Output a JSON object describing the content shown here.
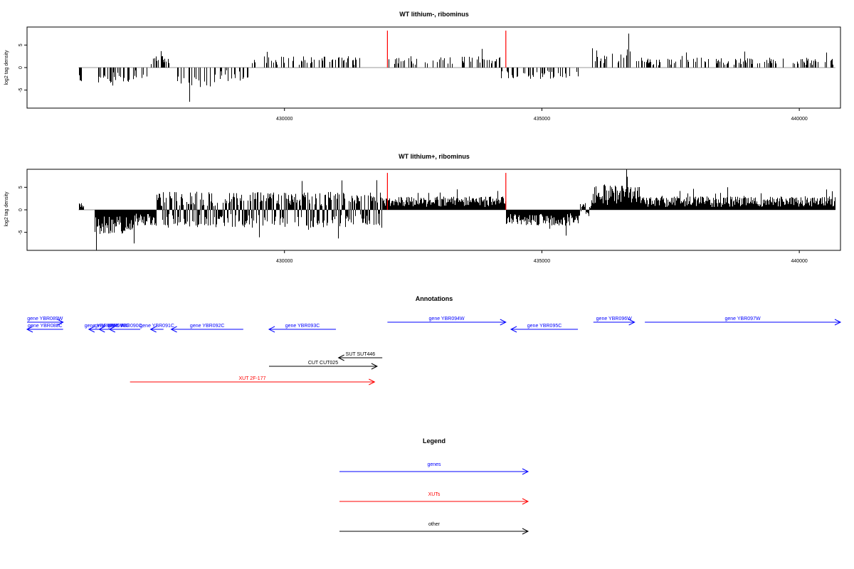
{
  "chart_data": [
    {
      "type": "bar",
      "title": "WT lithium-, ribominus",
      "xlabel": "",
      "ylabel": "log2 tag density",
      "xlim": [
        425000,
        440800
      ],
      "ylim": [
        -9,
        9
      ],
      "xticks": [
        430000,
        435000,
        440000
      ],
      "xtick_labels": [
        "430000",
        "435000",
        "440000"
      ],
      "yticks": [
        -5,
        0,
        5
      ],
      "ytick_labels": [
        "-5",
        "0",
        "5"
      ],
      "density_range": [
        426000,
        440700
      ],
      "segments": [
        {
          "x0": 426000,
          "x1": 426100,
          "sign": -1,
          "amp": 3.5
        },
        {
          "x0": 426100,
          "x1": 426300,
          "sign": 0,
          "amp": 0
        },
        {
          "x0": 426300,
          "x1": 427000,
          "sign": -1,
          "amp": 4.0
        },
        {
          "x0": 427000,
          "x1": 427400,
          "sign": -1,
          "amp": 3.0
        },
        {
          "x0": 427400,
          "x1": 427800,
          "sign": 1,
          "amp": 2.5
        },
        {
          "x0": 427800,
          "x1": 428700,
          "sign": -1,
          "amp": 4.5
        },
        {
          "x0": 428700,
          "x1": 429300,
          "sign": -1,
          "amp": 3.0
        },
        {
          "x0": 429300,
          "x1": 431500,
          "sign": 1,
          "amp": 2.5
        },
        {
          "x0": 431500,
          "x1": 432000,
          "sign": 0,
          "amp": 0
        },
        {
          "x0": 432000,
          "x1": 434200,
          "sign": 1,
          "amp": 2.5
        },
        {
          "x0": 434200,
          "x1": 435700,
          "sign": -1,
          "amp": 2.5
        },
        {
          "x0": 435700,
          "x1": 435950,
          "sign": 0,
          "amp": 0
        },
        {
          "x0": 435950,
          "x1": 436800,
          "sign": 1,
          "amp": 4.5
        },
        {
          "x0": 436800,
          "x1": 440700,
          "sign": 1,
          "amp": 2.2
        }
      ],
      "density": 0.35,
      "seed": 11,
      "markers": [
        432000,
        434300
      ],
      "marker_height": 8.2
    },
    {
      "type": "bar",
      "title": "WT lithium+, ribominus",
      "xlabel": "",
      "ylabel": "log2 tag density",
      "xlim": [
        425000,
        440800
      ],
      "ylim": [
        -9,
        9
      ],
      "xticks": [
        430000,
        435000,
        440000
      ],
      "xtick_labels": [
        "430000",
        "435000",
        "440000"
      ],
      "yticks": [
        -5,
        0,
        5
      ],
      "ytick_labels": [
        "-5",
        "0",
        "5"
      ],
      "density_range": [
        426000,
        440700
      ],
      "segments": [
        {
          "x0": 426000,
          "x1": 426100,
          "sign": 1,
          "amp": 1.5
        },
        {
          "x0": 426100,
          "x1": 426300,
          "sign": 0,
          "amp": 0
        },
        {
          "x0": 426300,
          "x1": 427100,
          "sign": -1,
          "amp": 5.5
        },
        {
          "x0": 427100,
          "x1": 427500,
          "sign": -1,
          "amp": 3.5
        },
        {
          "x0": 427500,
          "x1": 431900,
          "sign": 0,
          "amp": 4.0
        },
        {
          "x0": 431900,
          "x1": 434300,
          "sign": 1,
          "amp": 3.0
        },
        {
          "x0": 434300,
          "x1": 435700,
          "sign": -1,
          "amp": 3.5
        },
        {
          "x0": 435700,
          "x1": 435950,
          "sign": 0,
          "amp": 1.5
        },
        {
          "x0": 435950,
          "x1": 436900,
          "sign": 1,
          "amp": 5.5
        },
        {
          "x0": 436900,
          "x1": 440700,
          "sign": 1,
          "amp": 3.0
        }
      ],
      "density": 1.0,
      "seed": 29,
      "markers": [
        432000,
        434300
      ],
      "marker_height": 8.2
    }
  ],
  "annotations": {
    "title": "Annotations",
    "items": [
      {
        "label": "gene YBR089W",
        "start": 425000,
        "end": 425700,
        "strand": "+",
        "row": 0,
        "color": "#0000ff"
      },
      {
        "label": "gene YBR088C",
        "start": 425000,
        "end": 425700,
        "strand": "-",
        "row": 1,
        "color": "#0000ff"
      },
      {
        "label": "gene YBR089C-A",
        "start": 426200,
        "end": 426800,
        "strand": "-",
        "row": 1,
        "color": "#0000ff"
      },
      {
        "label": "gene YBR090C",
        "start": 426400,
        "end": 426900,
        "strand": "-",
        "row": 1,
        "color": "#0000ff"
      },
      {
        "label": "gene YBR090C",
        "start": 426600,
        "end": 427200,
        "strand": "-",
        "row": 1,
        "color": "#0000ff"
      },
      {
        "label": "gene YBR091C",
        "start": 427400,
        "end": 427650,
        "strand": "-",
        "row": 1,
        "color": "#0000ff"
      },
      {
        "label": "gene YBR092C",
        "start": 427800,
        "end": 429200,
        "strand": "-",
        "row": 1,
        "color": "#0000ff"
      },
      {
        "label": "gene YBR093C",
        "start": 429700,
        "end": 431000,
        "strand": "-",
        "row": 1,
        "color": "#0000ff"
      },
      {
        "label": "gene YBR094W",
        "start": 432000,
        "end": 434300,
        "strand": "+",
        "row": 0,
        "color": "#0000ff"
      },
      {
        "label": "gene YBR095C",
        "start": 434400,
        "end": 435700,
        "strand": "-",
        "row": 1,
        "color": "#0000ff"
      },
      {
        "label": "gene YBR096W",
        "start": 436000,
        "end": 436800,
        "strand": "+",
        "row": 0,
        "color": "#0000ff"
      },
      {
        "label": "gene YBR097W",
        "start": 437000,
        "end": 440800,
        "strand": "+",
        "row": 0,
        "color": "#0000ff"
      },
      {
        "label": "SUT SUT446",
        "start": 431050,
        "end": 431900,
        "strand": "-",
        "row": 3,
        "color": "#000000"
      },
      {
        "label": "CUT CUT025",
        "start": 429700,
        "end": 431800,
        "strand": "+",
        "row": 4,
        "color": "#000000"
      },
      {
        "label": "XUT 2F-177",
        "start": 427000,
        "end": 431750,
        "strand": "+",
        "row": 6,
        "color": "#ff0000"
      }
    ]
  },
  "legend": {
    "title": "Legend",
    "items": [
      {
        "label": "genes",
        "color": "#0000ff"
      },
      {
        "label": "XUTs",
        "color": "#ff0000"
      },
      {
        "label": "other",
        "color": "#000000"
      }
    ]
  }
}
